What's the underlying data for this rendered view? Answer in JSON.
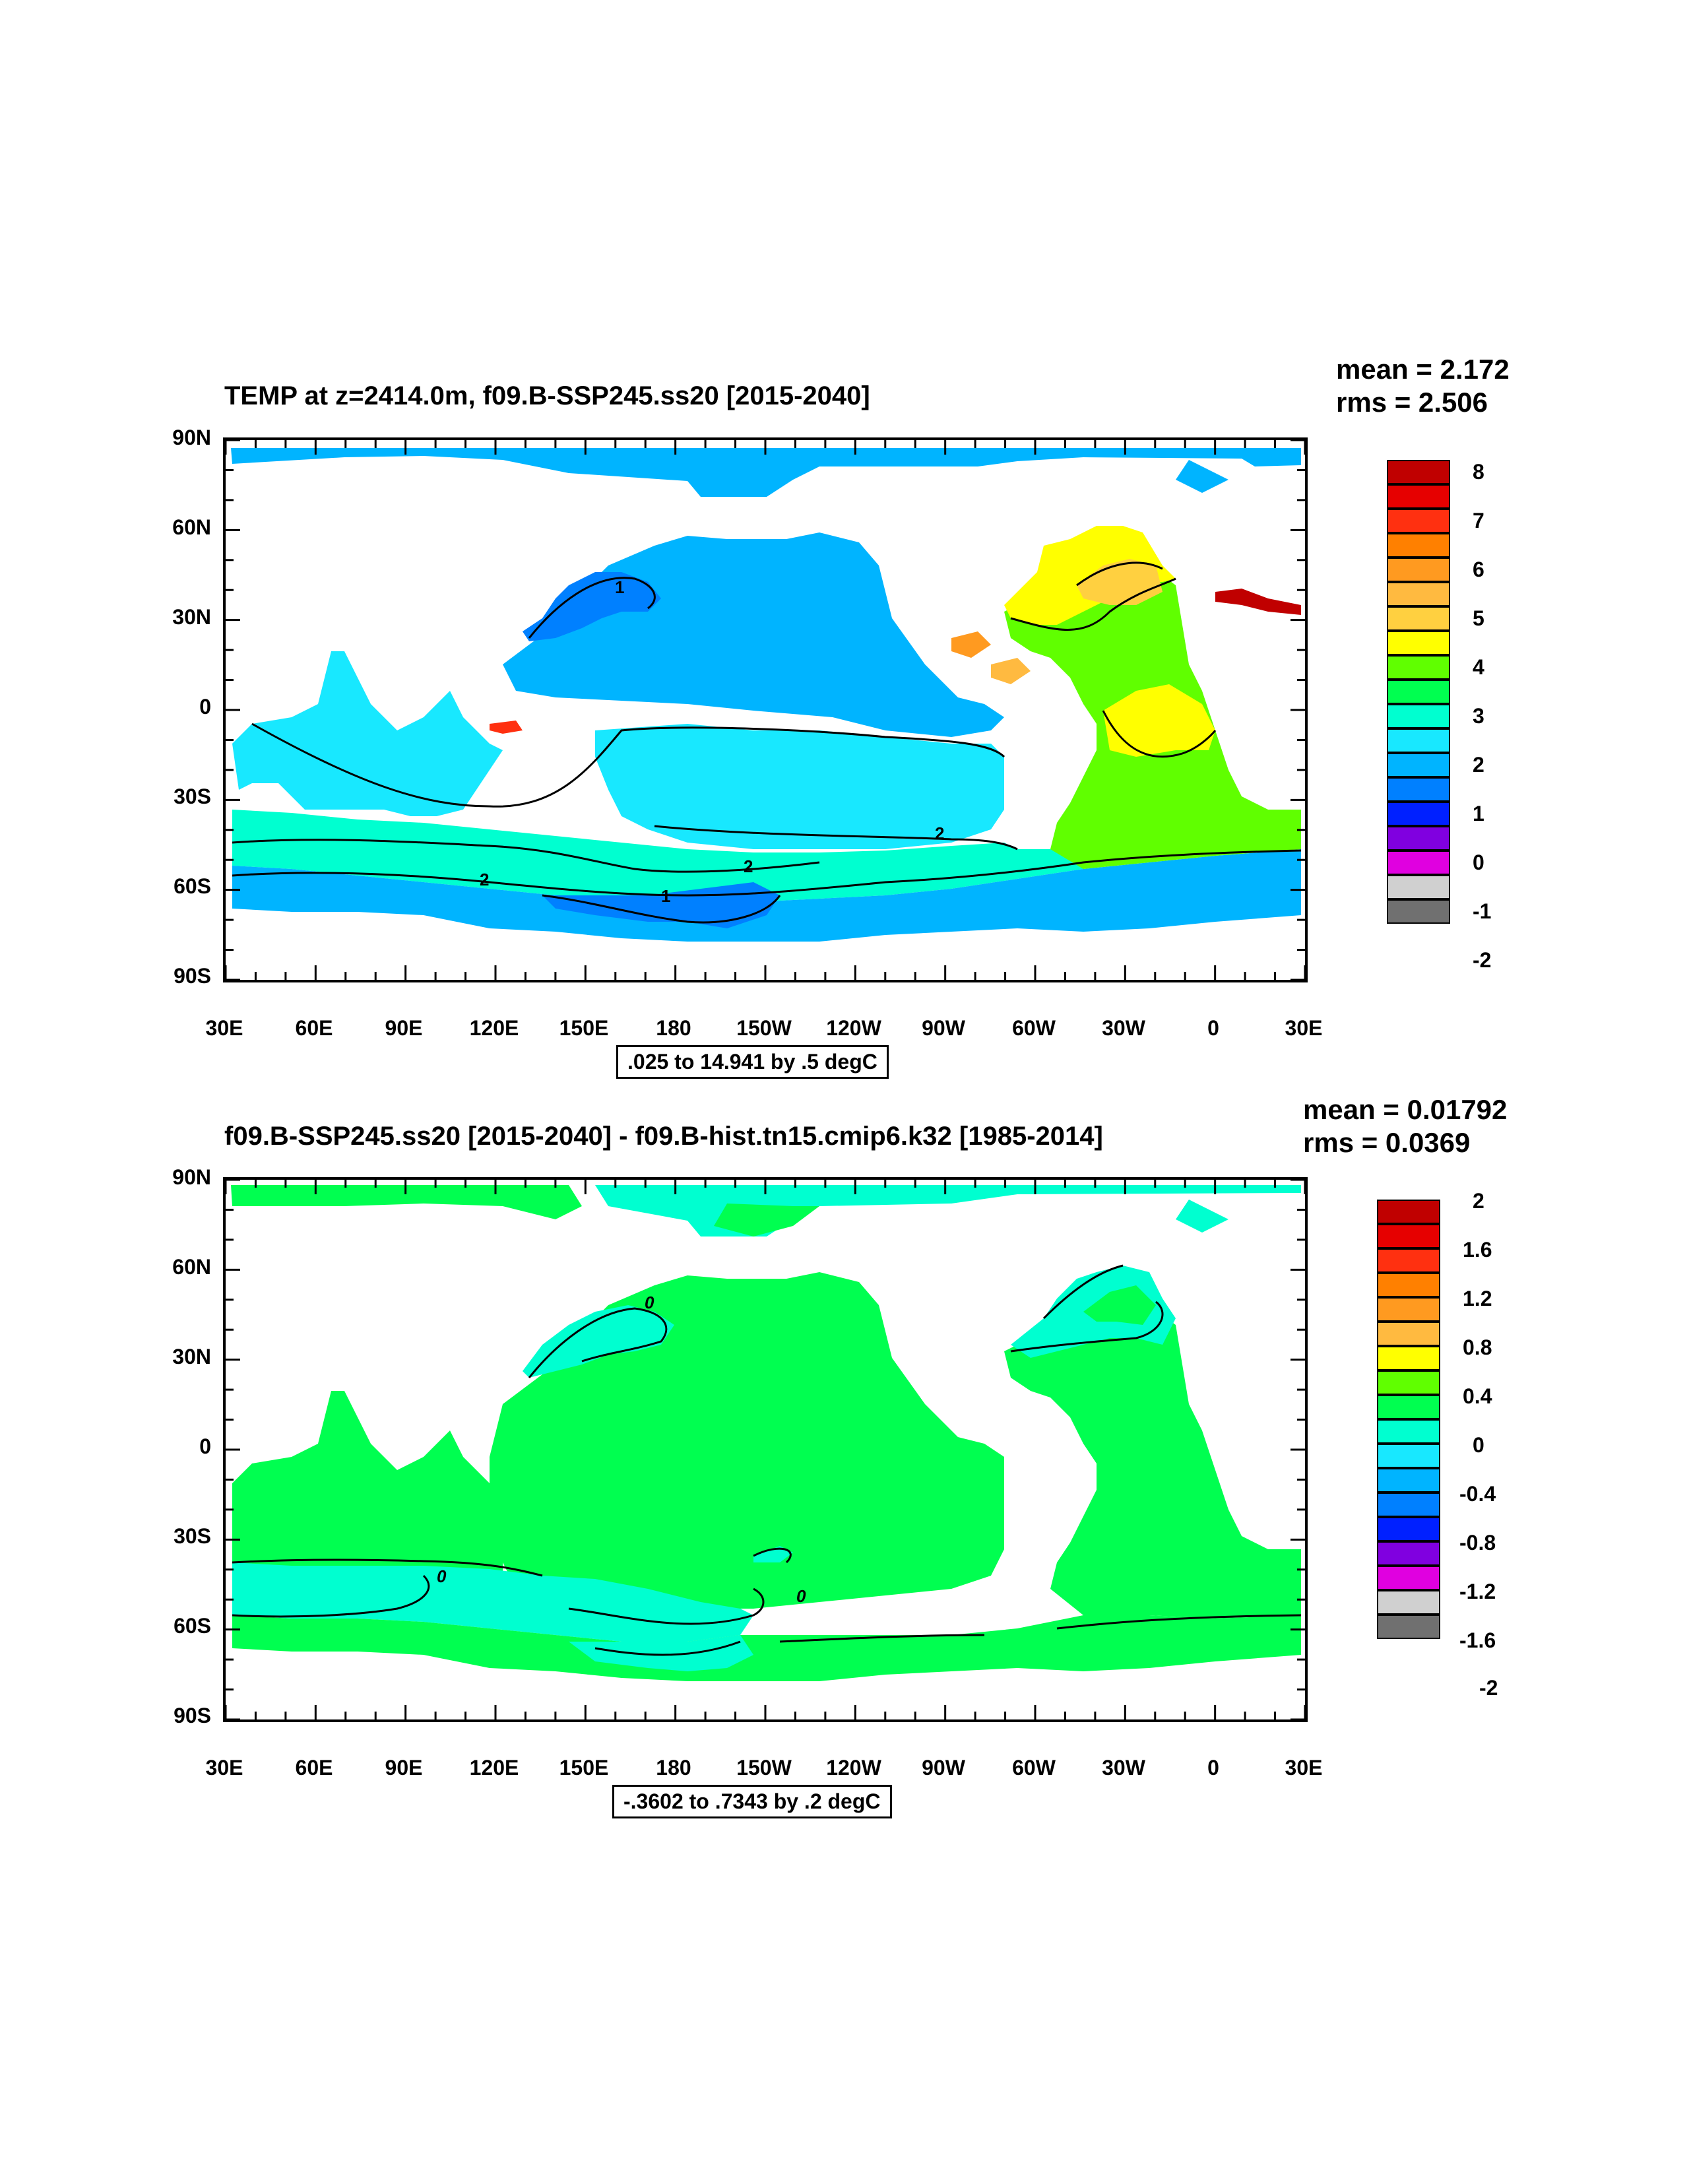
{
  "panels": [
    {
      "title": "TEMP at z=2414.0m, f09.B-SSP245.ss20 [2015-2040]",
      "mean_text": "mean = 2.172",
      "rms_text": "rms = 2.506",
      "range_text": ".025 to 14.941 by .5 degC",
      "lat_labels": [
        "90N",
        "60N",
        "30N",
        "0",
        "30S",
        "60S",
        "90S"
      ],
      "lon_labels": [
        "30E",
        "60E",
        "90E",
        "120E",
        "150E",
        "180",
        "150W",
        "120W",
        "90W",
        "60W",
        "30W",
        "0",
        "30E"
      ],
      "legend_labels": [
        "8",
        "7",
        "6",
        "5",
        "4",
        "3",
        "2",
        "1",
        "0",
        "-1",
        "-2"
      ],
      "legend_colors": [
        "#c00000",
        "#e60000",
        "#ff3010",
        "#ff8000",
        "#ff9a20",
        "#ffba40",
        "#ffd040",
        "#ffff00",
        "#60ff00",
        "#00ff50",
        "#00ffd0",
        "#18e8ff",
        "#00b4ff",
        "#0080ff",
        "#0020ff",
        "#8000e0",
        "#e000e0",
        "#d0d0d0",
        "#707070"
      ],
      "contour_labels": [
        "2",
        "2",
        "2",
        "1",
        "1"
      ],
      "colors": {
        "arctic": "#00b4ff",
        "north_pacific": "#00b4ff",
        "kuroshio": "#0080ff",
        "indian": "#18e8ff",
        "south_pacific": "#18e8ff",
        "southern_band": "#00ffd0",
        "southern_ocean": "#00b4ff",
        "ross": "#0080ff",
        "atlantic": "#60ff00",
        "atlantic_north": "#ffff00",
        "atlantic_ne": "#ffd040",
        "gulf": "#ff9a20",
        "med": "#c00000",
        "red_sea": "#ff3010",
        "sargasso": "#ffba40"
      }
    },
    {
      "title": "f09.B-SSP245.ss20 [2015-2040] - f09.B-hist.tn15.cmip6.k32 [1985-2014]",
      "mean_text": "mean = 0.01792",
      "rms_text": "rms = 0.0369",
      "range_text": "-.3602 to .7343 by .2 degC",
      "lat_labels": [
        "90N",
        "60N",
        "30N",
        "0",
        "30S",
        "60S",
        "90S"
      ],
      "lon_labels": [
        "30E",
        "60E",
        "90E",
        "120E",
        "150E",
        "180",
        "150W",
        "120W",
        "90W",
        "60W",
        "30W",
        "0",
        "30E"
      ],
      "legend_labels": [
        "2",
        "1.6",
        "1.2",
        "0.8",
        "0.4",
        "0",
        "-0.4",
        "-0.8",
        "-1.2",
        "-1.6",
        "-2"
      ],
      "legend_colors": [
        "#c00000",
        "#e60000",
        "#ff3010",
        "#ff8000",
        "#ff9a20",
        "#ffba40",
        "#ffff00",
        "#60ff00",
        "#00ff50",
        "#00ffd0",
        "#18e8ff",
        "#00b4ff",
        "#0080ff",
        "#0020ff",
        "#8000e0",
        "#e000e0",
        "#d0d0d0",
        "#707070"
      ],
      "contour_labels": [
        "0",
        "0",
        "0"
      ],
      "colors": {
        "ocean": "#00ff50",
        "cool": "#00ffd0"
      }
    }
  ]
}
